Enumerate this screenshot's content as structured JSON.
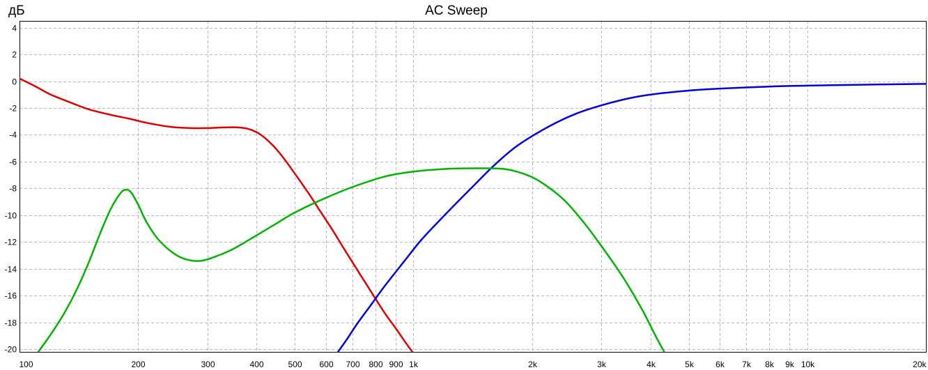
{
  "chart_data": {
    "type": "line",
    "title": "AC Sweep",
    "ylabel": "дБ",
    "xlabel": "",
    "x_scale": "log",
    "xlim": [
      100,
      20000
    ],
    "ylim": [
      -20.2,
      4.5
    ],
    "grid": true,
    "legend": "none",
    "y_ticks": [
      4,
      2,
      0,
      -2,
      -4,
      -6,
      -8,
      -10,
      -12,
      -14,
      -16,
      -18,
      -20
    ],
    "x_ticks": [
      {
        "value": 100,
        "label": "100"
      },
      {
        "value": 200,
        "label": "200"
      },
      {
        "value": 300,
        "label": "300"
      },
      {
        "value": 400,
        "label": "400"
      },
      {
        "value": 500,
        "label": "500"
      },
      {
        "value": 600,
        "label": "600"
      },
      {
        "value": 700,
        "label": "700"
      },
      {
        "value": 800,
        "label": "800"
      },
      {
        "value": 900,
        "label": "900"
      },
      {
        "value": 1000,
        "label": "1k"
      },
      {
        "value": 2000,
        "label": "2k"
      },
      {
        "value": 3000,
        "label": "3k"
      },
      {
        "value": 4000,
        "label": "4k"
      },
      {
        "value": 5000,
        "label": "5k"
      },
      {
        "value": 6000,
        "label": "6k"
      },
      {
        "value": 7000,
        "label": "7k"
      },
      {
        "value": 8000,
        "label": "8k"
      },
      {
        "value": 9000,
        "label": "9k"
      },
      {
        "value": 10000,
        "label": "10k"
      },
      {
        "value": 20000,
        "label": "20k"
      }
    ],
    "series": [
      {
        "color": "#e00000",
        "x": [
          100,
          110,
          120,
          135,
          150,
          170,
          190,
          210,
          240,
          270,
          300,
          330,
          360,
          385,
          410,
          440,
          470,
          500,
          540,
          580,
          620,
          660,
          700,
          750,
          800,
          850,
          900,
          950,
          1000,
          1060
        ],
        "y": [
          0.2,
          -0.4,
          -1.0,
          -1.6,
          -2.1,
          -2.5,
          -2.8,
          -3.1,
          -3.4,
          -3.5,
          -3.5,
          -3.45,
          -3.45,
          -3.6,
          -4.0,
          -4.8,
          -5.8,
          -6.9,
          -8.3,
          -9.7,
          -11.0,
          -12.3,
          -13.5,
          -14.9,
          -16.2,
          -17.4,
          -18.4,
          -19.4,
          -20.3,
          -21.2
        ]
      },
      {
        "color": "#0000e0",
        "x": [
          640,
          680,
          720,
          780,
          850,
          950,
          1050,
          1200,
          1400,
          1600,
          1800,
          2000,
          2300,
          2600,
          3000,
          3500,
          4000,
          5000,
          6000,
          8000,
          10000,
          15000,
          20000
        ],
        "y": [
          -20.3,
          -19.2,
          -18.1,
          -16.7,
          -15.2,
          -13.4,
          -11.8,
          -10.0,
          -8.0,
          -6.3,
          -5.0,
          -4.1,
          -3.1,
          -2.4,
          -1.8,
          -1.3,
          -1.0,
          -0.7,
          -0.55,
          -0.4,
          -0.33,
          -0.25,
          -0.2
        ]
      },
      {
        "color": "#00b400",
        "x": [
          111,
          120,
          130,
          140,
          150,
          160,
          170,
          180,
          186,
          192,
          200,
          210,
          225,
          245,
          265,
          290,
          320,
          350,
          400,
          450,
          500,
          600,
          700,
          850,
          1000,
          1200,
          1450,
          1700,
          1900,
          2100,
          2400,
          2700,
          3000,
          3400,
          3800,
          4100,
          4350
        ],
        "y": [
          -20.3,
          -18.9,
          -17.3,
          -15.5,
          -13.5,
          -11.4,
          -9.6,
          -8.4,
          -8.1,
          -8.3,
          -9.2,
          -10.5,
          -11.8,
          -12.8,
          -13.3,
          -13.4,
          -13.0,
          -12.5,
          -11.5,
          -10.6,
          -9.8,
          -8.7,
          -7.9,
          -7.1,
          -6.75,
          -6.55,
          -6.5,
          -6.55,
          -6.9,
          -7.5,
          -8.8,
          -10.5,
          -12.3,
          -14.6,
          -17.0,
          -18.9,
          -20.3
        ]
      }
    ]
  }
}
